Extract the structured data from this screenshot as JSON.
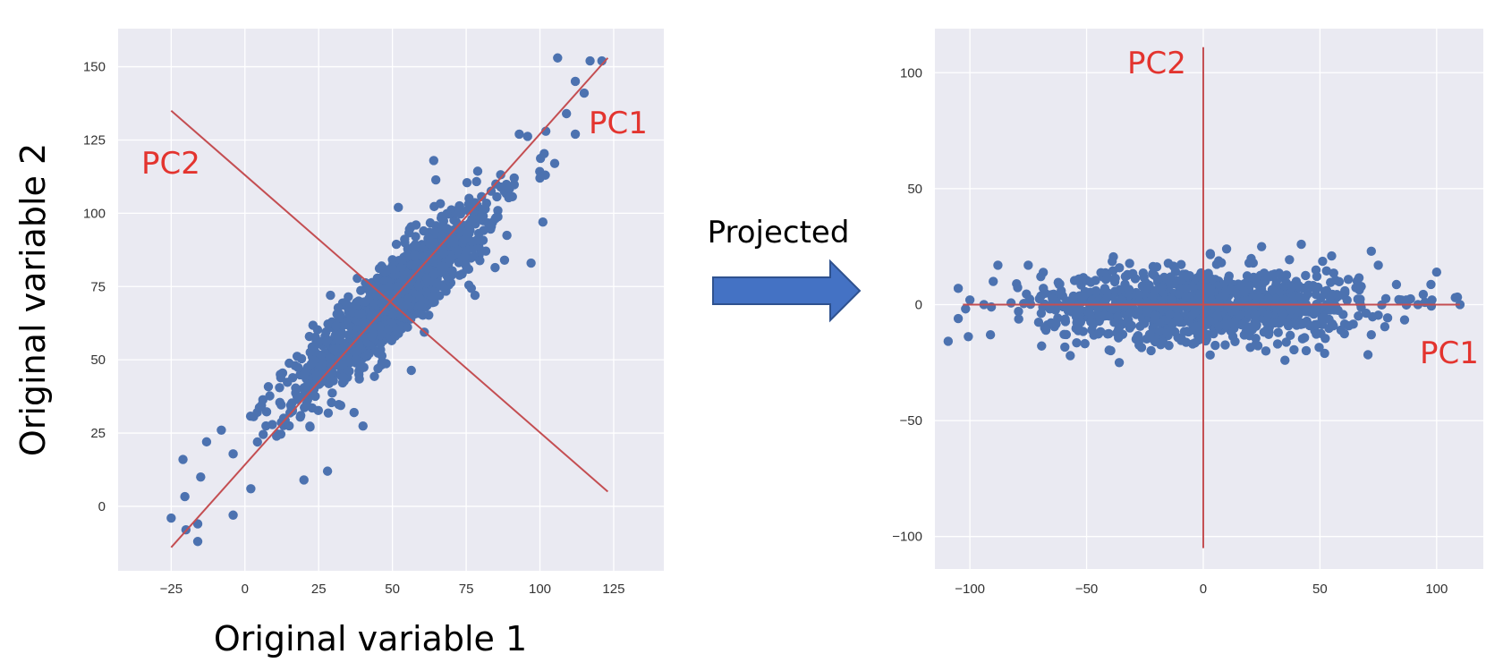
{
  "colors": {
    "plot_bg": "#eaeaf2",
    "grid": "#ffffff",
    "points": "#4c72b0",
    "pc_line": "#c44e52",
    "pc_text": "#e3342f",
    "arrow_fill": "#4472c4",
    "arrow_stroke": "#2f528f"
  },
  "arrow": {
    "label": "Projected",
    "icon": "right-arrow-icon"
  },
  "chart_data": [
    {
      "type": "scatter",
      "title": "",
      "xlabel": "Original variable 1",
      "ylabel": "Original variable 2",
      "xlim": [
        -43,
        142
      ],
      "ylim": [
        -22,
        163
      ],
      "xticks": [
        -25,
        0,
        25,
        50,
        75,
        100,
        125
      ],
      "xtick_labels": [
        "−25",
        "0",
        "25",
        "50",
        "75",
        "100",
        "125"
      ],
      "yticks": [
        0,
        25,
        50,
        75,
        100,
        125,
        150
      ],
      "ytick_labels": [
        "0",
        "25",
        "50",
        "75",
        "100",
        "125",
        "150"
      ],
      "grid": true,
      "point_cloud": {
        "center": [
          50,
          70
        ],
        "major_axis_direction": [
          1,
          1
        ],
        "major_sd": 24,
        "minor_sd": 5.5,
        "n_points": 1100
      },
      "points": [
        {
          "x": -25,
          "y": -4
        },
        {
          "x": -20,
          "y": -8
        },
        {
          "x": -16,
          "y": -12
        },
        {
          "x": -16,
          "y": -6
        },
        {
          "x": -21,
          "y": 16
        },
        {
          "x": -15,
          "y": 10
        },
        {
          "x": -13,
          "y": 22
        },
        {
          "x": -8,
          "y": 26
        },
        {
          "x": -4,
          "y": -3
        },
        {
          "x": 2,
          "y": 6
        },
        {
          "x": 12,
          "y": 45
        },
        {
          "x": 17,
          "y": 48
        },
        {
          "x": 29,
          "y": 72
        },
        {
          "x": 20,
          "y": 9
        },
        {
          "x": 28,
          "y": 12
        },
        {
          "x": 37,
          "y": 32
        },
        {
          "x": 43,
          "y": 58
        },
        {
          "x": 49,
          "y": 75
        },
        {
          "x": 52,
          "y": 102
        },
        {
          "x": 58,
          "y": 96
        },
        {
          "x": 64,
          "y": 118
        },
        {
          "x": 78,
          "y": 72
        },
        {
          "x": 88,
          "y": 84
        },
        {
          "x": 97,
          "y": 83
        },
        {
          "x": 93,
          "y": 127
        },
        {
          "x": 102,
          "y": 128
        },
        {
          "x": 100,
          "y": 112
        },
        {
          "x": 106,
          "y": 153
        },
        {
          "x": 117,
          "y": 152
        },
        {
          "x": 112,
          "y": 145
        },
        {
          "x": 109,
          "y": 134
        },
        {
          "x": 112,
          "y": 127
        },
        {
          "x": 115,
          "y": 141
        },
        {
          "x": 121,
          "y": 152
        },
        {
          "x": 105,
          "y": 117
        },
        {
          "x": 101,
          "y": 97
        }
      ],
      "pc_axes": [
        {
          "label": "PC1",
          "x": [
            -25,
            123
          ],
          "y": [
            -14,
            153
          ]
        },
        {
          "label": "PC2",
          "x": [
            -25,
            123
          ],
          "y": [
            135,
            5
          ]
        }
      ]
    },
    {
      "type": "scatter",
      "title": "",
      "xlabel": "",
      "ylabel": "",
      "xlim": [
        -115,
        120
      ],
      "ylim": [
        -114,
        119
      ],
      "xticks": [
        -100,
        -50,
        0,
        50,
        100
      ],
      "xtick_labels": [
        "−100",
        "−50",
        "0",
        "50",
        "100"
      ],
      "yticks": [
        -100,
        -50,
        0,
        50,
        100
      ],
      "ytick_labels": [
        "−100",
        "−50",
        "0",
        "50",
        "100"
      ],
      "grid": true,
      "point_cloud": {
        "center": [
          0,
          0
        ],
        "major_axis_direction": [
          1,
          0
        ],
        "major_sd": 34,
        "minor_sd": 7.5,
        "n_points": 1100
      },
      "points": [
        {
          "x": -105,
          "y": 7
        },
        {
          "x": -105,
          "y": -6
        },
        {
          "x": -100,
          "y": 2
        },
        {
          "x": -90,
          "y": 10
        },
        {
          "x": -88,
          "y": 17
        },
        {
          "x": -80,
          "y": 9
        },
        {
          "x": -75,
          "y": 17
        },
        {
          "x": -68,
          "y": -10
        },
        {
          "x": -57,
          "y": -22
        },
        {
          "x": -36,
          "y": -25
        },
        {
          "x": 3,
          "y": 22
        },
        {
          "x": 10,
          "y": 24
        },
        {
          "x": 25,
          "y": 25
        },
        {
          "x": 42,
          "y": 26
        },
        {
          "x": 55,
          "y": 21
        },
        {
          "x": 72,
          "y": 23
        },
        {
          "x": 75,
          "y": 17
        },
        {
          "x": 72,
          "y": -13
        },
        {
          "x": 52,
          "y": -21
        },
        {
          "x": 35,
          "y": -24
        },
        {
          "x": 87,
          "y": 2
        },
        {
          "x": 92,
          "y": 0
        },
        {
          "x": 95,
          "y": 1
        },
        {
          "x": 100,
          "y": 14
        },
        {
          "x": 98,
          "y": 2
        },
        {
          "x": 108,
          "y": 3
        },
        {
          "x": 110,
          "y": 0
        },
        {
          "x": -94,
          "y": 0
        }
      ],
      "pc_axes": [
        {
          "label": "PC1",
          "x": [
            -103,
            110
          ],
          "y": [
            0,
            0
          ]
        },
        {
          "label": "PC2",
          "x": [
            0,
            0
          ],
          "y": [
            -105,
            111
          ]
        }
      ]
    }
  ]
}
